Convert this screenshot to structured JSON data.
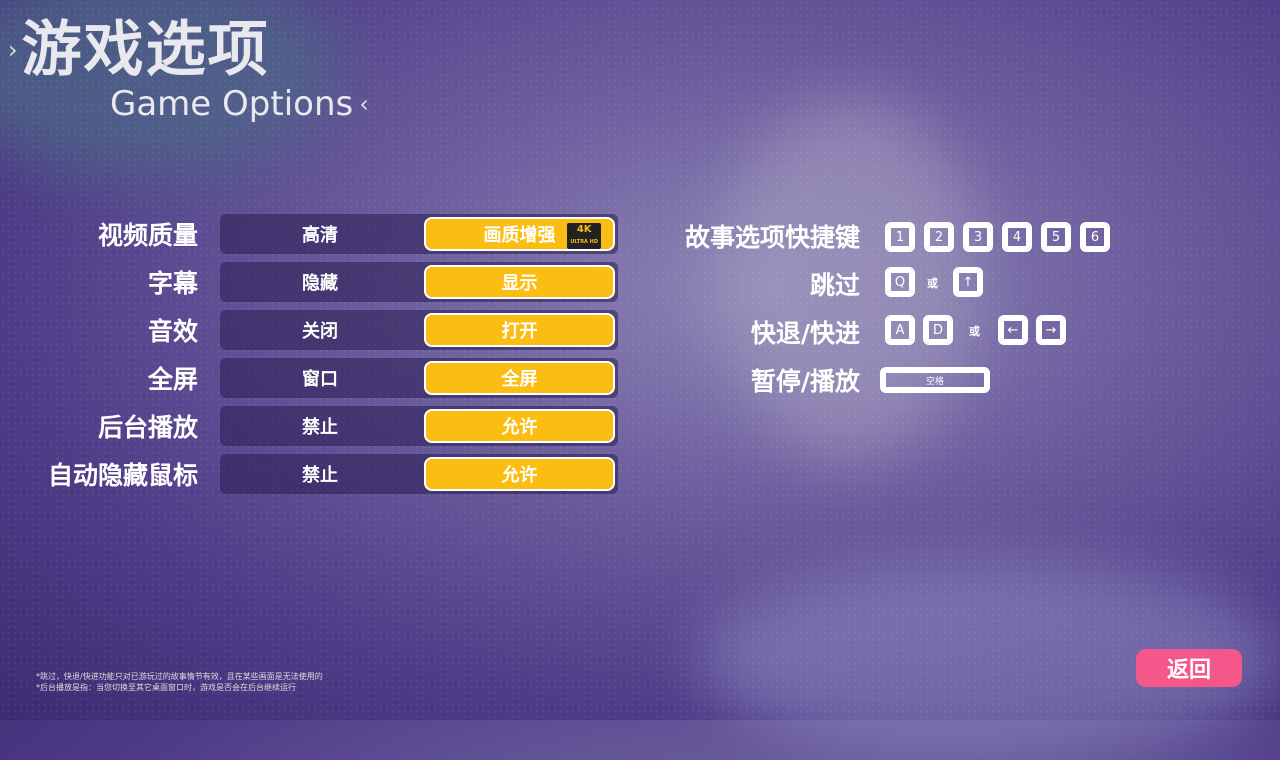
{
  "header": {
    "title": "游戏选项",
    "subtitle": "Game Options"
  },
  "options": [
    {
      "label": "视频质量",
      "off": "高清",
      "on": "画质增强",
      "badge": "4K ULTRA HD"
    },
    {
      "label": "字幕",
      "off": "隐藏",
      "on": "显示"
    },
    {
      "label": "音效",
      "off": "关闭",
      "on": "打开"
    },
    {
      "label": "全屏",
      "off": "窗口",
      "on": "全屏"
    },
    {
      "label": "后台播放",
      "off": "禁止",
      "on": "允许"
    },
    {
      "label": "自动隐藏鼠标",
      "off": "禁止",
      "on": "允许"
    }
  ],
  "shortcuts": {
    "story": {
      "label": "故事选项快捷键",
      "keys": [
        "1",
        "2",
        "3",
        "4",
        "5",
        "6"
      ]
    },
    "skip": {
      "label": "跳过",
      "keys": [
        "Q",
        "↑"
      ],
      "or": "或"
    },
    "rewind": {
      "label": "快退/快进",
      "keys": [
        "A",
        "D",
        "←",
        "→"
      ],
      "or": "或"
    },
    "pause": {
      "label": "暂停/播放",
      "key": "空格"
    }
  },
  "notes": [
    "*跳过，快退/快进功能只对已游玩过的故事情节有效，且在某些画面是无法使用的",
    "*后台播放是指：当您切换至其它桌面窗口时，游戏是否会在后台继续运行"
  ],
  "back_label": "返回",
  "colors": {
    "accent": "#fbbd12",
    "back": "#f4578a"
  }
}
